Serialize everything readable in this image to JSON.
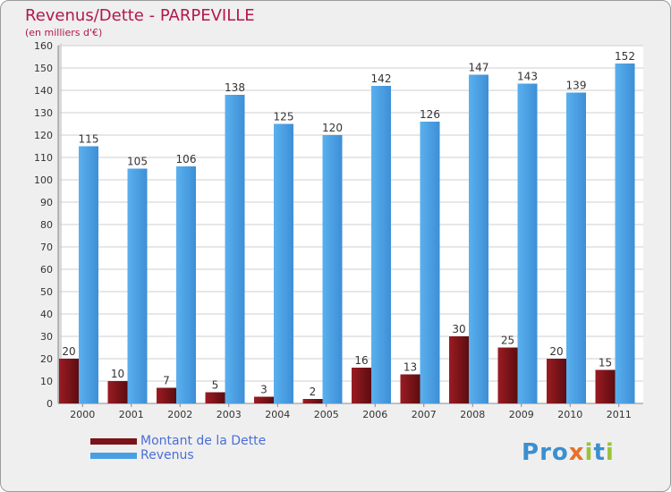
{
  "title": "Revenus/Dette - PARPEVILLE",
  "subtitle": "(en milliers d'€)",
  "logo": "Proxiti",
  "colors": {
    "title": "#b3174f",
    "debt_bar": "#7a1418",
    "revenue_bar": "#4a9fe3",
    "legend_text": "#4b6ed8"
  },
  "chart_data": {
    "type": "bar",
    "categories": [
      "2000",
      "2001",
      "2002",
      "2003",
      "2004",
      "2005",
      "2006",
      "2007",
      "2008",
      "2009",
      "2010",
      "2011"
    ],
    "series": [
      {
        "name": "Montant de la Dette",
        "values": [
          20,
          10,
          7,
          5,
          3,
          2,
          16,
          13,
          30,
          25,
          20,
          15
        ]
      },
      {
        "name": "Revenus",
        "values": [
          115,
          105,
          106,
          138,
          125,
          120,
          142,
          126,
          147,
          143,
          139,
          152
        ]
      }
    ],
    "ylim": [
      0,
      160
    ],
    "yticks": [
      0,
      10,
      20,
      30,
      40,
      50,
      60,
      70,
      80,
      90,
      100,
      110,
      120,
      130,
      140,
      150,
      160
    ],
    "grid": true,
    "legend_position": "bottom-left"
  }
}
